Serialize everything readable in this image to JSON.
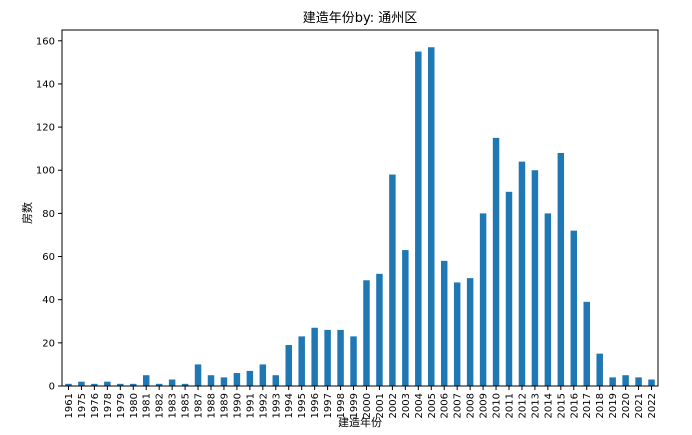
{
  "chart_data": {
    "type": "bar",
    "title": "建造年份by: 通州区",
    "xlabel": "建造年份",
    "ylabel": "房数",
    "ylim": [
      0,
      165
    ],
    "yticks": [
      0,
      20,
      40,
      60,
      80,
      100,
      120,
      140,
      160
    ],
    "grid": false,
    "bar_color": "#1f77b4",
    "categories": [
      "1961",
      "1975",
      "1976",
      "1978",
      "1979",
      "1980",
      "1981",
      "1982",
      "1983",
      "1985",
      "1987",
      "1988",
      "1989",
      "1990",
      "1991",
      "1992",
      "1993",
      "1994",
      "1995",
      "1996",
      "1997",
      "1998",
      "1999",
      "2000",
      "2001",
      "2002",
      "2003",
      "2004",
      "2005",
      "2006",
      "2007",
      "2008",
      "2009",
      "2010",
      "2011",
      "2012",
      "2013",
      "2014",
      "2015",
      "2016",
      "2017",
      "2018",
      "2019",
      "2020",
      "2021",
      "2022"
    ],
    "values": [
      1,
      2,
      1,
      2,
      1,
      1,
      5,
      1,
      3,
      1,
      10,
      5,
      4,
      6,
      7,
      10,
      5,
      19,
      23,
      27,
      26,
      26,
      23,
      49,
      52,
      98,
      63,
      155,
      157,
      58,
      48,
      50,
      80,
      115,
      90,
      104,
      100,
      80,
      108,
      72,
      39,
      15,
      4,
      5,
      4,
      3
    ]
  }
}
